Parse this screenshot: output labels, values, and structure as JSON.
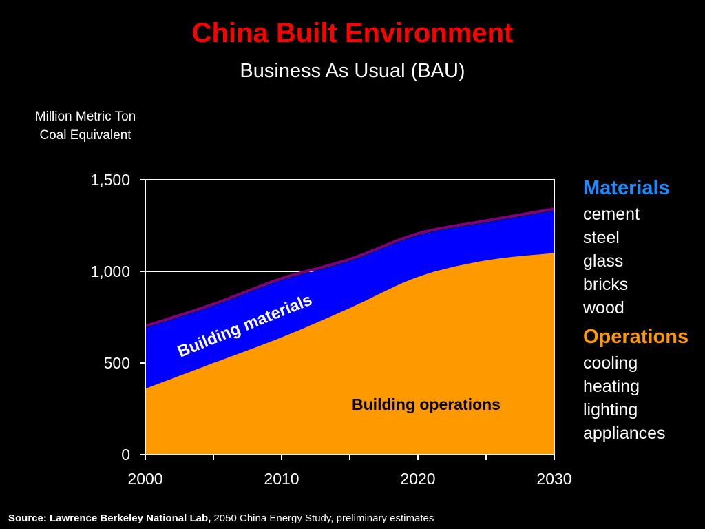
{
  "title": "China Built Environment",
  "subtitle": "Business As Usual (BAU)",
  "ylabel_lines": [
    "Million Metric Ton",
    "Coal Equivalent"
  ],
  "legend": {
    "materials": {
      "title": "Materials",
      "color": "#1a8cff",
      "items": [
        "cement",
        "steel",
        "glass",
        "bricks",
        "wood"
      ]
    },
    "operations": {
      "title": "Operations",
      "color": "#ff9900",
      "items": [
        "cooling",
        "heating",
        "lighting",
        "appliances"
      ]
    }
  },
  "source": {
    "label": "Source:  Lawrence Berkeley National Lab,",
    "text": " 2050 China Energy Study, preliminary estimates"
  },
  "chart_data": {
    "type": "area",
    "title": "China Built Environment",
    "subtitle": "Business As Usual (BAU)",
    "ylabel": "Million Metric Ton Coal Equivalent",
    "xlabel": "",
    "xlim": [
      2000,
      2030
    ],
    "ylim": [
      0,
      1500
    ],
    "x_ticks": [
      2000,
      2010,
      2020,
      2030
    ],
    "y_ticks": [
      0,
      500,
      1000,
      1500
    ],
    "y_tick_labels": [
      "0",
      "500",
      "1,000",
      "1,500"
    ],
    "stacked": true,
    "x": [
      2000,
      2005,
      2010,
      2015,
      2020,
      2025,
      2030
    ],
    "series": [
      {
        "name": "Building operations",
        "color": "#ff9900",
        "values": [
          360,
          500,
          640,
          800,
          970,
          1060,
          1100
        ]
      },
      {
        "name": "Building materials",
        "color": "#0000ff",
        "values": [
          330,
          310,
          310,
          255,
          225,
          205,
          230
        ]
      }
    ],
    "outline_color": "#800080",
    "grid": "horizontal"
  }
}
